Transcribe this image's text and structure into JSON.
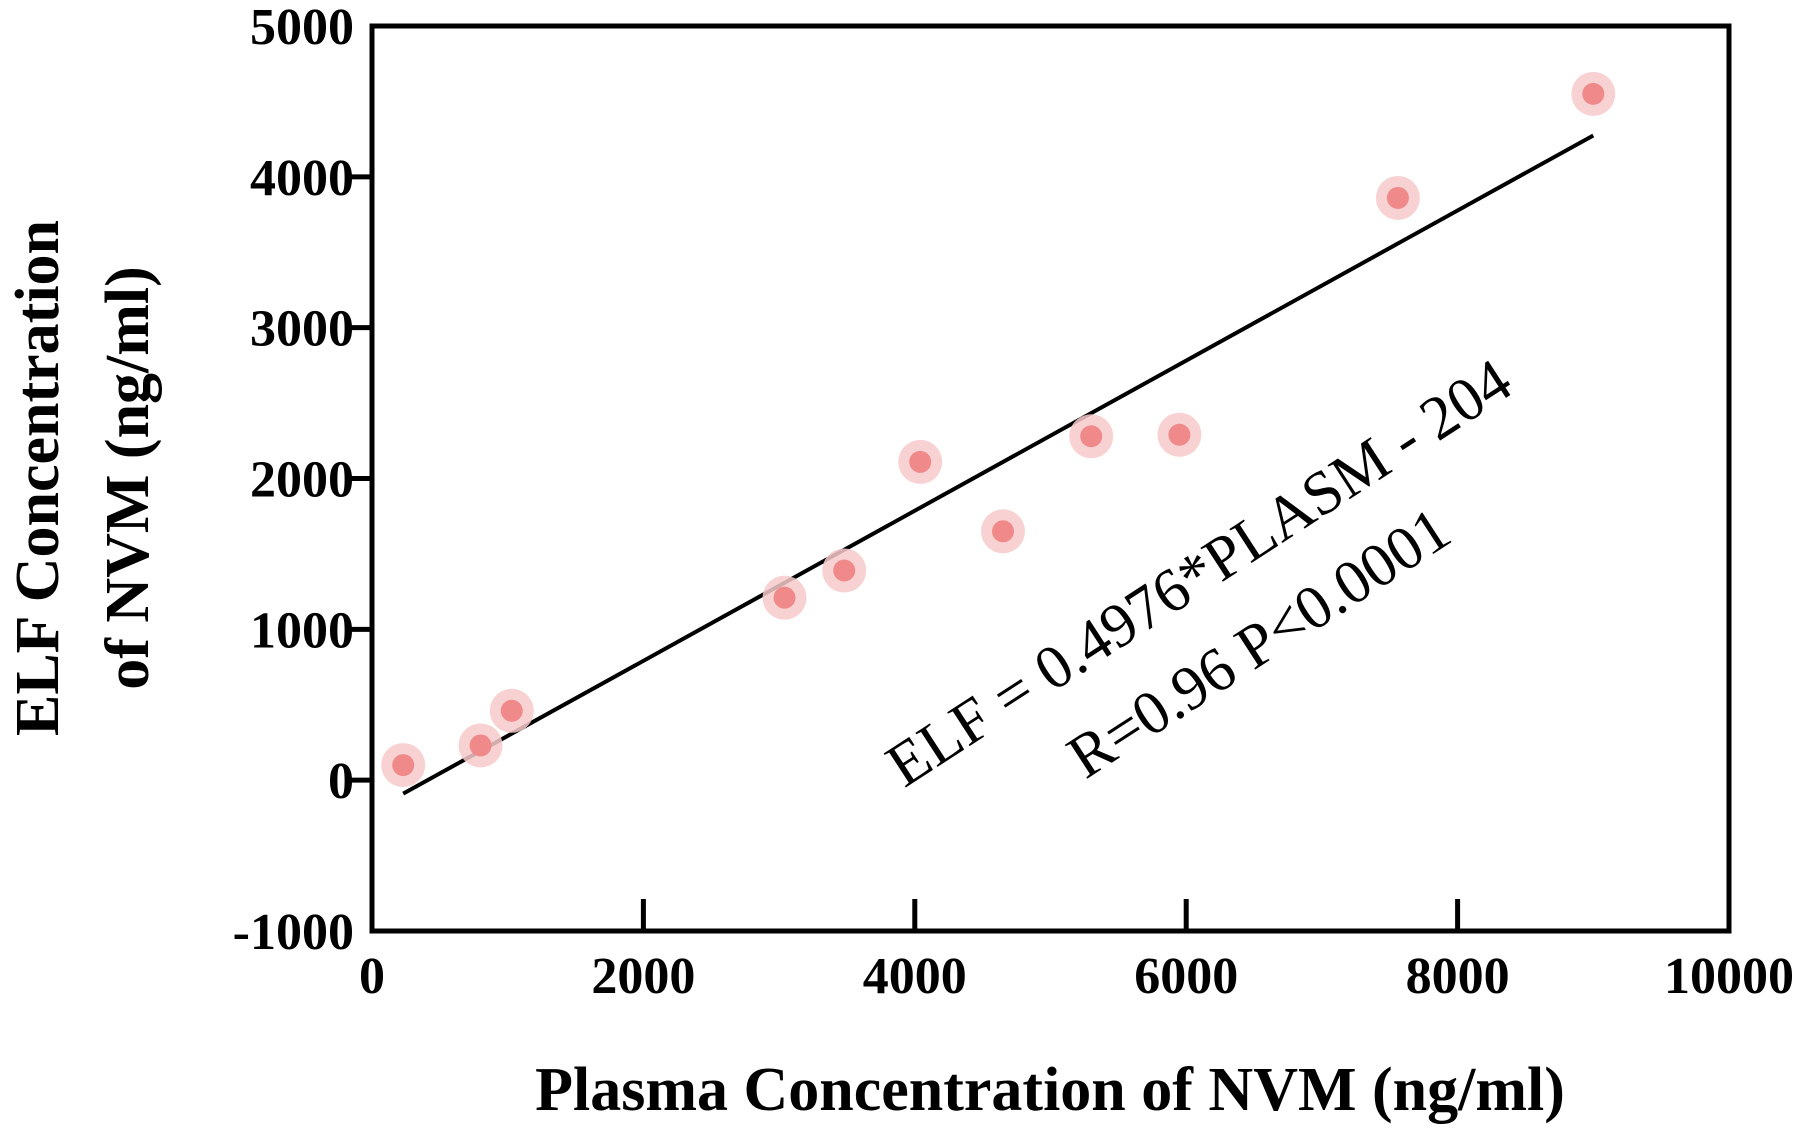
{
  "chart_data": {
    "type": "scatter",
    "title": "",
    "xlabel": "Plasma Concentration of NVM (ng/ml)",
    "ylabel_line1": "ELF Concentration",
    "ylabel_line2": "of NVM (ng/ml)",
    "xlim": [
      0,
      10000
    ],
    "ylim": [
      -1000,
      5000
    ],
    "xticks": [
      0,
      2000,
      4000,
      6000,
      8000,
      10000
    ],
    "xtick_labels": [
      "0",
      "2000",
      "4000",
      "6000",
      "8000",
      "10000"
    ],
    "yticks": [
      -1000,
      0,
      1000,
      2000,
      3000,
      4000,
      5000
    ],
    "ytick_labels": [
      "-1000",
      "0",
      "1000",
      "2000",
      "3000",
      "4000",
      "5000"
    ],
    "grid": false,
    "marker_color": "#f08a8a",
    "marker_halo_color": "#f7caca",
    "line_color": "#000000",
    "points": [
      {
        "x": 230,
        "y": 100
      },
      {
        "x": 800,
        "y": 230
      },
      {
        "x": 1030,
        "y": 460
      },
      {
        "x": 3040,
        "y": 1210
      },
      {
        "x": 3480,
        "y": 1390
      },
      {
        "x": 4040,
        "y": 2110
      },
      {
        "x": 4650,
        "y": 1650
      },
      {
        "x": 5300,
        "y": 2280
      },
      {
        "x": 5950,
        "y": 2290
      },
      {
        "x": 7560,
        "y": 3860
      },
      {
        "x": 9000,
        "y": 4550
      }
    ],
    "fit_line": {
      "slope": 0.4976,
      "intercept": -204,
      "x_range": [
        230,
        9000
      ]
    },
    "annotations": {
      "equation": "ELF = 0.4976*PLASM - 204",
      "stats": "R=0.96   P<0.0001"
    }
  }
}
